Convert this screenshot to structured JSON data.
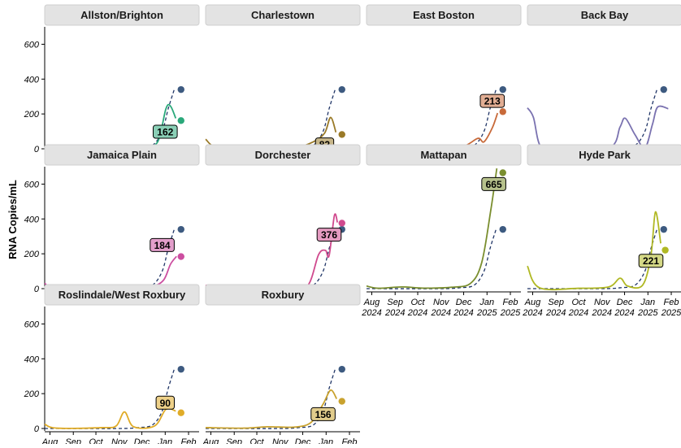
{
  "chart_data": {
    "type": "line",
    "ylabel": "RNA Copies/mL",
    "ylim": [
      0,
      700
    ],
    "yticks": [
      0,
      200,
      400,
      600
    ],
    "xrange": [
      "2024-07-25",
      "2025-02-15"
    ],
    "xticks": [
      {
        "date": "2024-08-01",
        "month": "Aug",
        "year": "2024"
      },
      {
        "date": "2024-09-01",
        "month": "Sep",
        "year": "2024"
      },
      {
        "date": "2024-10-01",
        "month": "Oct",
        "year": "2024"
      },
      {
        "date": "2024-11-01",
        "month": "Nov",
        "year": "2024"
      },
      {
        "date": "2024-12-01",
        "month": "Dec",
        "year": "2024"
      },
      {
        "date": "2025-01-01",
        "month": "Jan",
        "year": "2025"
      },
      {
        "date": "2025-02-01",
        "month": "Feb",
        "year": "2025"
      }
    ],
    "reference": {
      "style": "dashed",
      "color": "#1f3466",
      "point_color": "#3d5a80",
      "points": [
        {
          "x": "2024-07-25",
          "y": 0
        },
        {
          "x": "2024-11-01",
          "y": 0
        },
        {
          "x": "2024-11-25",
          "y": 5
        },
        {
          "x": "2024-12-15",
          "y": 20
        },
        {
          "x": "2024-12-28",
          "y": 100
        },
        {
          "x": "2025-01-05",
          "y": 230
        },
        {
          "x": "2025-01-13",
          "y": 340
        }
      ],
      "end_point": {
        "x": "2025-01-22",
        "y": 340
      }
    },
    "panels": [
      {
        "name": "Allston/Brighton",
        "color": "#2aa87a",
        "label": "162",
        "label_at": {
          "x": "2025-01-01",
          "y": 98
        },
        "points": [
          {
            "x": "2024-07-25",
            "y": 2
          },
          {
            "x": "2024-09-01",
            "y": 5
          },
          {
            "x": "2024-10-15",
            "y": 3
          },
          {
            "x": "2024-11-15",
            "y": 12
          },
          {
            "x": "2024-12-05",
            "y": 15
          },
          {
            "x": "2024-12-22",
            "y": 40
          },
          {
            "x": "2025-01-02",
            "y": 230
          },
          {
            "x": "2025-01-08",
            "y": 245
          },
          {
            "x": "2025-01-15",
            "y": 175
          }
        ],
        "end_point": {
          "x": "2025-01-22",
          "y": 162
        }
      },
      {
        "name": "Charlestown",
        "color": "#9a7a28",
        "label": "82",
        "label_at": {
          "x": "2024-12-30",
          "y": 25
        },
        "points": [
          {
            "x": "2024-07-25",
            "y": 55
          },
          {
            "x": "2024-08-10",
            "y": 8
          },
          {
            "x": "2024-10-01",
            "y": 2
          },
          {
            "x": "2024-11-20",
            "y": 8
          },
          {
            "x": "2024-12-15",
            "y": 40
          },
          {
            "x": "2024-12-30",
            "y": 90
          },
          {
            "x": "2025-01-07",
            "y": 180
          },
          {
            "x": "2025-01-14",
            "y": 95
          }
        ],
        "end_point": {
          "x": "2025-01-22",
          "y": 82
        }
      },
      {
        "name": "East Boston",
        "color": "#c86a3a",
        "label": "213",
        "label_at": {
          "x": "2025-01-08",
          "y": 275
        },
        "points": [
          {
            "x": "2024-07-25",
            "y": 2
          },
          {
            "x": "2024-09-15",
            "y": 2
          },
          {
            "x": "2024-11-01",
            "y": 5
          },
          {
            "x": "2024-12-01",
            "y": 15
          },
          {
            "x": "2024-12-20",
            "y": 60
          },
          {
            "x": "2024-12-28",
            "y": 40
          },
          {
            "x": "2025-01-08",
            "y": 120
          },
          {
            "x": "2025-01-15",
            "y": 205
          }
        ],
        "end_point": {
          "x": "2025-01-22",
          "y": 213
        }
      },
      {
        "name": "Back Bay",
        "color": "#7a72b0",
        "label": "",
        "label_at": null,
        "points": [
          {
            "x": "2024-07-25",
            "y": 235
          },
          {
            "x": "2024-08-02",
            "y": 180
          },
          {
            "x": "2024-08-12",
            "y": 10
          },
          {
            "x": "2024-09-05",
            "y": 2
          },
          {
            "x": "2024-11-10",
            "y": 5
          },
          {
            "x": "2024-11-25",
            "y": 125
          },
          {
            "x": "2024-12-02",
            "y": 175
          },
          {
            "x": "2024-12-15",
            "y": 80
          },
          {
            "x": "2024-12-28",
            "y": 5
          },
          {
            "x": "2025-01-07",
            "y": 140
          },
          {
            "x": "2025-01-14",
            "y": 240
          },
          {
            "x": "2025-01-28",
            "y": 230
          }
        ],
        "end_point": null
      },
      {
        "name": "Jamaica Plain",
        "color": "#cc4ea0",
        "label": "184",
        "label_at": {
          "x": "2024-12-28",
          "y": 250
        },
        "points": [
          {
            "x": "2024-07-25",
            "y": 30
          },
          {
            "x": "2024-08-08",
            "y": 2
          },
          {
            "x": "2024-10-01",
            "y": 2
          },
          {
            "x": "2024-11-15",
            "y": 8
          },
          {
            "x": "2024-12-15",
            "y": 15
          },
          {
            "x": "2024-12-30",
            "y": 50
          },
          {
            "x": "2025-01-08",
            "y": 140
          },
          {
            "x": "2025-01-16",
            "y": 185
          }
        ],
        "end_point": {
          "x": "2025-01-22",
          "y": 184
        }
      },
      {
        "name": "Dorchester",
        "color": "#d04a8e",
        "label": "376",
        "label_at": {
          "x": "2025-01-05",
          "y": 310
        },
        "points": [
          {
            "x": "2024-07-25",
            "y": 20
          },
          {
            "x": "2024-08-08",
            "y": 2
          },
          {
            "x": "2024-10-01",
            "y": 2
          },
          {
            "x": "2024-11-15",
            "y": 5
          },
          {
            "x": "2024-12-08",
            "y": 20
          },
          {
            "x": "2024-12-22",
            "y": 195
          },
          {
            "x": "2024-12-31",
            "y": 220
          },
          {
            "x": "2025-01-05",
            "y": 190
          },
          {
            "x": "2025-01-12",
            "y": 420
          },
          {
            "x": "2025-01-16",
            "y": 380
          }
        ],
        "end_point": {
          "x": "2025-01-22",
          "y": 376
        }
      },
      {
        "name": "Mattapan",
        "color": "#7a8e2e",
        "label": "665",
        "label_at": {
          "x": "2025-01-10",
          "y": 600
        },
        "points": [
          {
            "x": "2024-07-25",
            "y": 15
          },
          {
            "x": "2024-08-10",
            "y": 2
          },
          {
            "x": "2024-09-10",
            "y": 10
          },
          {
            "x": "2024-10-10",
            "y": 3
          },
          {
            "x": "2024-11-15",
            "y": 8
          },
          {
            "x": "2024-12-10",
            "y": 30
          },
          {
            "x": "2024-12-25",
            "y": 150
          },
          {
            "x": "2025-01-06",
            "y": 450
          },
          {
            "x": "2025-01-14",
            "y": 690
          }
        ],
        "end_point": {
          "x": "2025-01-22",
          "y": 665
        }
      },
      {
        "name": "Hyde Park",
        "color": "#b0b823",
        "label": "221",
        "label_at": {
          "x": "2025-01-05",
          "y": 160
        },
        "points": [
          {
            "x": "2024-07-25",
            "y": 130
          },
          {
            "x": "2024-08-10",
            "y": 5
          },
          {
            "x": "2024-10-01",
            "y": 2
          },
          {
            "x": "2024-11-10",
            "y": 10
          },
          {
            "x": "2024-11-25",
            "y": 60
          },
          {
            "x": "2024-12-05",
            "y": 15
          },
          {
            "x": "2024-12-25",
            "y": 20
          },
          {
            "x": "2025-01-05",
            "y": 190
          },
          {
            "x": "2025-01-11",
            "y": 440
          },
          {
            "x": "2025-01-18",
            "y": 260
          }
        ],
        "end_point": {
          "x": "2025-01-24",
          "y": 221
        }
      },
      {
        "name": "Roslindale/West Roxbury",
        "color": "#e0ac28",
        "label": "90",
        "label_at": {
          "x": "2025-01-01",
          "y": 148
        },
        "points": [
          {
            "x": "2024-07-25",
            "y": 25
          },
          {
            "x": "2024-08-10",
            "y": 2
          },
          {
            "x": "2024-10-10",
            "y": 5
          },
          {
            "x": "2024-10-28",
            "y": 15
          },
          {
            "x": "2024-11-08",
            "y": 95
          },
          {
            "x": "2024-11-20",
            "y": 10
          },
          {
            "x": "2024-12-18",
            "y": 15
          },
          {
            "x": "2025-01-02",
            "y": 110
          },
          {
            "x": "2025-01-15",
            "y": 100
          }
        ],
        "end_point": {
          "x": "2025-01-22",
          "y": 90
        }
      },
      {
        "name": "Roxbury",
        "color": "#c9a22e",
        "label": "156",
        "label_at": {
          "x": "2024-12-28",
          "y": 82
        },
        "points": [
          {
            "x": "2024-07-25",
            "y": 5
          },
          {
            "x": "2024-09-15",
            "y": 2
          },
          {
            "x": "2024-10-15",
            "y": 10
          },
          {
            "x": "2024-11-20",
            "y": 8
          },
          {
            "x": "2024-12-12",
            "y": 35
          },
          {
            "x": "2024-12-28",
            "y": 140
          },
          {
            "x": "2025-01-07",
            "y": 220
          },
          {
            "x": "2025-01-15",
            "y": 170
          }
        ],
        "end_point": {
          "x": "2025-01-22",
          "y": 156
        }
      }
    ]
  }
}
